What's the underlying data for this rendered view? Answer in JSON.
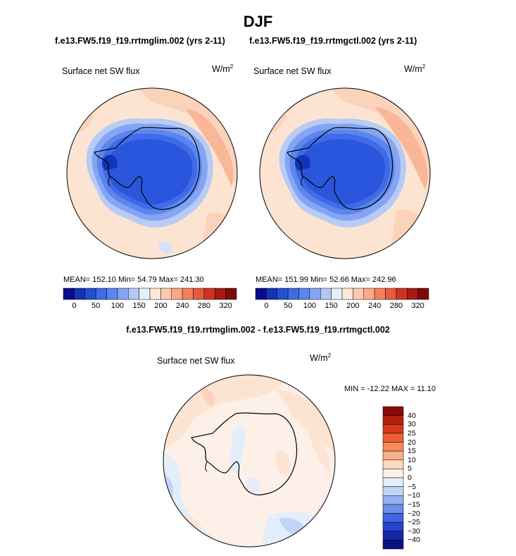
{
  "title": "DJF",
  "panel_left": {
    "case": "f.e13.FW5.f19_f19.rrtmglim.002 (yrs 2-11)",
    "field": "Surface net SW flux",
    "units": "W/m",
    "units_exp": "2",
    "stats": "MEAN= 152.10   Min=   54.79   Max= 241.30"
  },
  "panel_right": {
    "case": "f.e13.FW5.f19_f19.rrtmgctl.002 (yrs 2-11)",
    "field": "Surface net SW flux",
    "units": "W/m",
    "units_exp": "2",
    "stats": "MEAN= 151.99   Min=   52.66   Max= 242.96"
  },
  "colorbar_abs": {
    "colors": [
      "#0a0a8c",
      "#1432b4",
      "#2350d2",
      "#3f6be6",
      "#5b86ef",
      "#85a5f2",
      "#b4c8f5",
      "#e6eefa",
      "#fde7d7",
      "#fccab0",
      "#f9a888",
      "#f47f5e",
      "#e85a3c",
      "#cc3322",
      "#a81a12",
      "#7d0b08"
    ],
    "tick_labels": [
      "0",
      "50",
      "100",
      "150",
      "200",
      "240",
      "280",
      "320"
    ]
  },
  "panel_diff": {
    "case": "f.e13.FW5.f19_f19.rrtmglim.002 - f.e13.FW5.f19_f19.rrtmgctl.002",
    "field": "Surface net SW flux",
    "units": "W/m",
    "units_exp": "2",
    "stats": "MIN = -12.22  MAX =  11.10"
  },
  "colorbar_diff": {
    "colors": [
      "#8c0a05",
      "#b3200e",
      "#d6381c",
      "#f05d33",
      "#f88a5c",
      "#fbb08c",
      "#fdd7c0",
      "#fdf0e8",
      "#e4eefb",
      "#c2d4f7",
      "#94b2f1",
      "#6a8eec",
      "#3f66e4",
      "#2443cf",
      "#1428a8",
      "#0a1282"
    ],
    "tick_labels": [
      "40",
      "30",
      "25",
      "20",
      "15",
      "10",
      "5",
      "0",
      "−5",
      "−10",
      "−15",
      "−20",
      "−25",
      "−30",
      "−40"
    ]
  }
}
